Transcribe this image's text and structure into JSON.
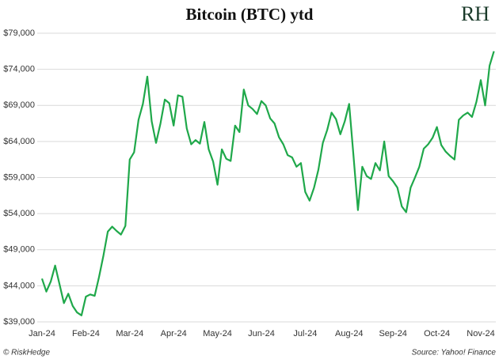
{
  "chart_data": {
    "type": "line",
    "title": "Bitcoin (BTC) ytd",
    "logo": "RH",
    "footer_left": "© RiskHedge",
    "footer_right": "Source: Yahoo! Finance",
    "categories": [
      "Jan-24",
      null,
      null,
      null,
      null,
      null,
      null,
      null,
      null,
      null,
      "Feb-24",
      null,
      null,
      null,
      null,
      null,
      null,
      null,
      null,
      null,
      "Mar-24",
      null,
      null,
      null,
      null,
      null,
      null,
      null,
      null,
      null,
      "Apr-24",
      null,
      null,
      null,
      null,
      null,
      null,
      null,
      null,
      null,
      "May-24",
      null,
      null,
      null,
      null,
      null,
      null,
      null,
      null,
      null,
      "Jun-24",
      null,
      null,
      null,
      null,
      null,
      null,
      null,
      null,
      null,
      "Jul-24",
      null,
      null,
      null,
      null,
      null,
      null,
      null,
      null,
      null,
      "Aug-24",
      null,
      null,
      null,
      null,
      null,
      null,
      null,
      null,
      null,
      "Sep-24",
      null,
      null,
      null,
      null,
      null,
      null,
      null,
      null,
      null,
      "Oct-24",
      null,
      null,
      null,
      null,
      null,
      null,
      null,
      null,
      null,
      "Nov-24",
      null,
      null,
      null
    ],
    "series": [
      {
        "name": "BTC",
        "color": "#1fa84a",
        "values": [
          45000,
          43200,
          44600,
          46800,
          44200,
          41600,
          42900,
          41200,
          40300,
          39900,
          42500,
          42800,
          42600,
          45200,
          48200,
          51500,
          52200,
          51600,
          51100,
          52300,
          61500,
          62500,
          67000,
          69200,
          73000,
          66800,
          63800,
          66500,
          69800,
          69300,
          66200,
          70400,
          70200,
          65800,
          63600,
          64200,
          63700,
          66700,
          62900,
          61200,
          58000,
          62900,
          61600,
          61300,
          66200,
          65300,
          71200,
          69000,
          68500,
          67800,
          69600,
          69000,
          67200,
          66500,
          64600,
          63600,
          62100,
          61800,
          60500,
          61000,
          57000,
          55800,
          57600,
          60100,
          63800,
          65600,
          68000,
          67100,
          65000,
          66800,
          69200,
          62000,
          54500,
          60500,
          59200,
          58800,
          61000,
          60000,
          64000,
          59200,
          58500,
          57600,
          55000,
          54200,
          57600,
          59000,
          60500,
          63000,
          63600,
          64500,
          66000,
          63500,
          62600,
          62000,
          61500,
          67000,
          67600,
          68000,
          67400,
          69500,
          72500,
          69000,
          74500,
          76500
        ]
      }
    ],
    "ylim": [
      39000,
      79000
    ],
    "yticks": [
      {
        "value": 39000,
        "label": "$39,000"
      },
      {
        "value": 44000,
        "label": "$44,000"
      },
      {
        "value": 49000,
        "label": "$49,000"
      },
      {
        "value": 54000,
        "label": "$54,000"
      },
      {
        "value": 59000,
        "label": "$59,000"
      },
      {
        "value": 64000,
        "label": "$64,000"
      },
      {
        "value": 69000,
        "label": "$69,000"
      },
      {
        "value": 74000,
        "label": "$74,000"
      },
      {
        "value": 79000,
        "label": "$79,000"
      }
    ],
    "grid": true
  }
}
